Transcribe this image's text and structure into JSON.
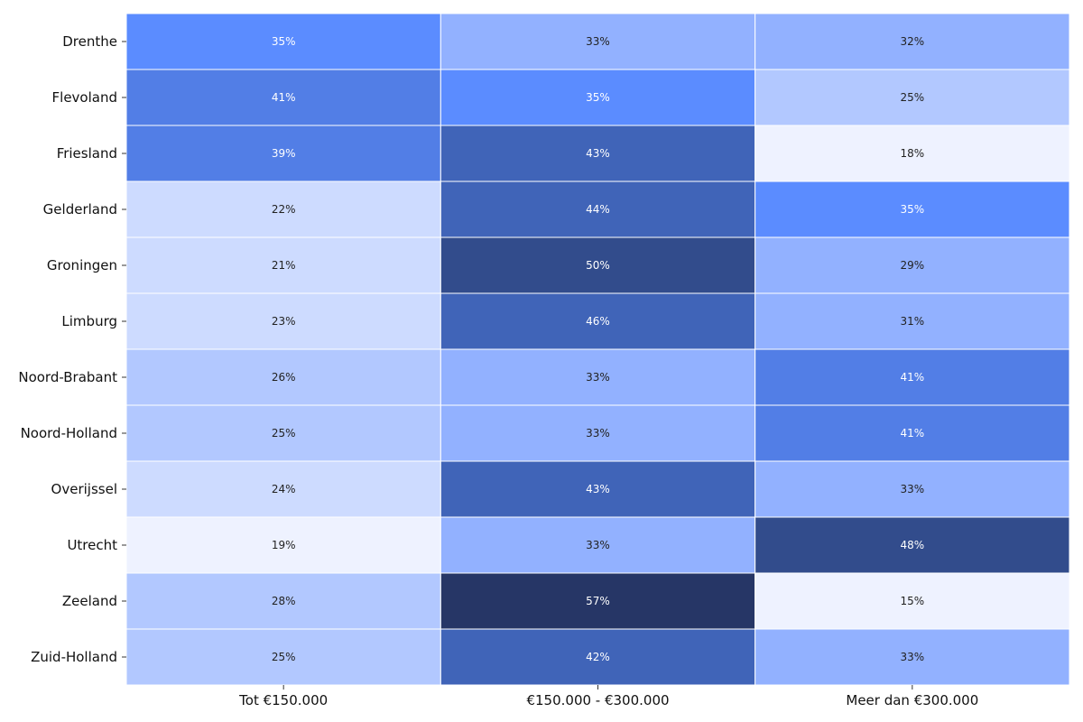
{
  "chart_data": {
    "type": "heatmap",
    "rows": [
      "Drenthe",
      "Flevoland",
      "Friesland",
      "Gelderland",
      "Groningen",
      "Limburg",
      "Noord-Brabant",
      "Noord-Holland",
      "Overijssel",
      "Utrecht",
      "Zeeland",
      "Zuid-Holland"
    ],
    "columns": [
      "Tot €150.000",
      "€150.000 - €300.000",
      "Meer dan €300.000"
    ],
    "values": [
      [
        35,
        33,
        32
      ],
      [
        41,
        35,
        25
      ],
      [
        39,
        43,
        18
      ],
      [
        22,
        44,
        35
      ],
      [
        21,
        50,
        29
      ],
      [
        23,
        46,
        31
      ],
      [
        26,
        33,
        41
      ],
      [
        25,
        33,
        41
      ],
      [
        24,
        43,
        33
      ],
      [
        19,
        33,
        48
      ],
      [
        28,
        57,
        15
      ],
      [
        25,
        42,
        33
      ]
    ],
    "labels": [
      [
        "35%",
        "33%",
        "32%"
      ],
      [
        "41%",
        "35%",
        "25%"
      ],
      [
        "39%",
        "43%",
        "18%"
      ],
      [
        "22%",
        "44%",
        "35%"
      ],
      [
        "21%",
        "50%",
        "29%"
      ],
      [
        "23%",
        "46%",
        "31%"
      ],
      [
        "26%",
        "33%",
        "41%"
      ],
      [
        "25%",
        "33%",
        "41%"
      ],
      [
        "24%",
        "43%",
        "33%"
      ],
      [
        "19%",
        "33%",
        "48%"
      ],
      [
        "28%",
        "57%",
        "15%"
      ],
      [
        "25%",
        "42%",
        "33%"
      ]
    ],
    "color_scale": [
      "#eef2ff",
      "#cddbff",
      "#b2c8ff",
      "#92b1ff",
      "#5b8cff",
      "#527ee6",
      "#4064b8",
      "#324c8c",
      "#263666"
    ],
    "text_colors": {
      "light": "#ffffff",
      "dark": "#222222"
    },
    "grid": true,
    "legend": "none"
  }
}
